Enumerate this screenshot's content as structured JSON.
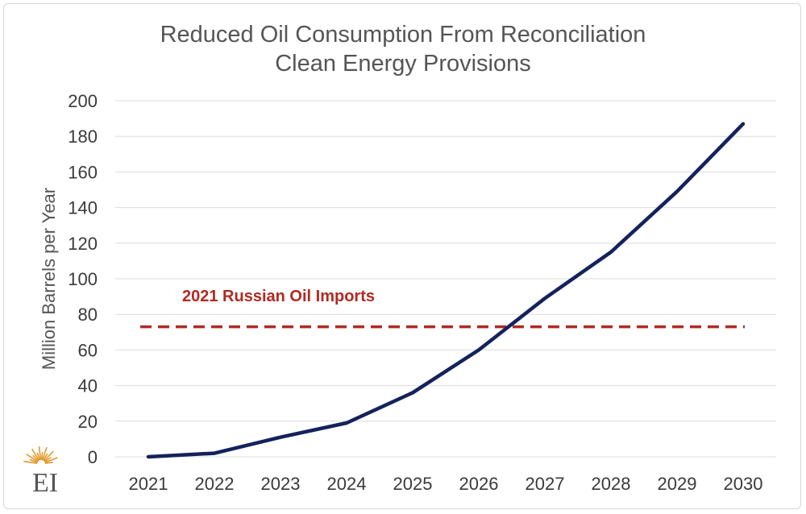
{
  "chart_data": {
    "type": "line",
    "title": [
      "Reduced Oil Consumption From Reconciliation",
      "Clean Energy Provisions"
    ],
    "xlabel": "",
    "ylabel": "Million Barrels per Year",
    "x": [
      "2021",
      "2022",
      "2023",
      "2024",
      "2025",
      "2026",
      "2027",
      "2028",
      "2029",
      "2030"
    ],
    "series": [
      {
        "values": [
          0,
          2,
          11,
          19,
          36,
          60,
          89,
          115,
          149,
          187
        ],
        "color": "#14225c"
      }
    ],
    "reference_line": {
      "label": "2021 Russian Oil Imports",
      "value": 73,
      "color": "#b02a22",
      "style": "dashed"
    },
    "ylim": [
      0,
      200
    ],
    "yticks": [
      0,
      20,
      40,
      60,
      80,
      100,
      120,
      140,
      160,
      180,
      200
    ],
    "grid": true,
    "legend": "none"
  },
  "logo": {
    "text": "EI",
    "icon": "sunburst-logo-icon",
    "color": "#e09b2d"
  }
}
